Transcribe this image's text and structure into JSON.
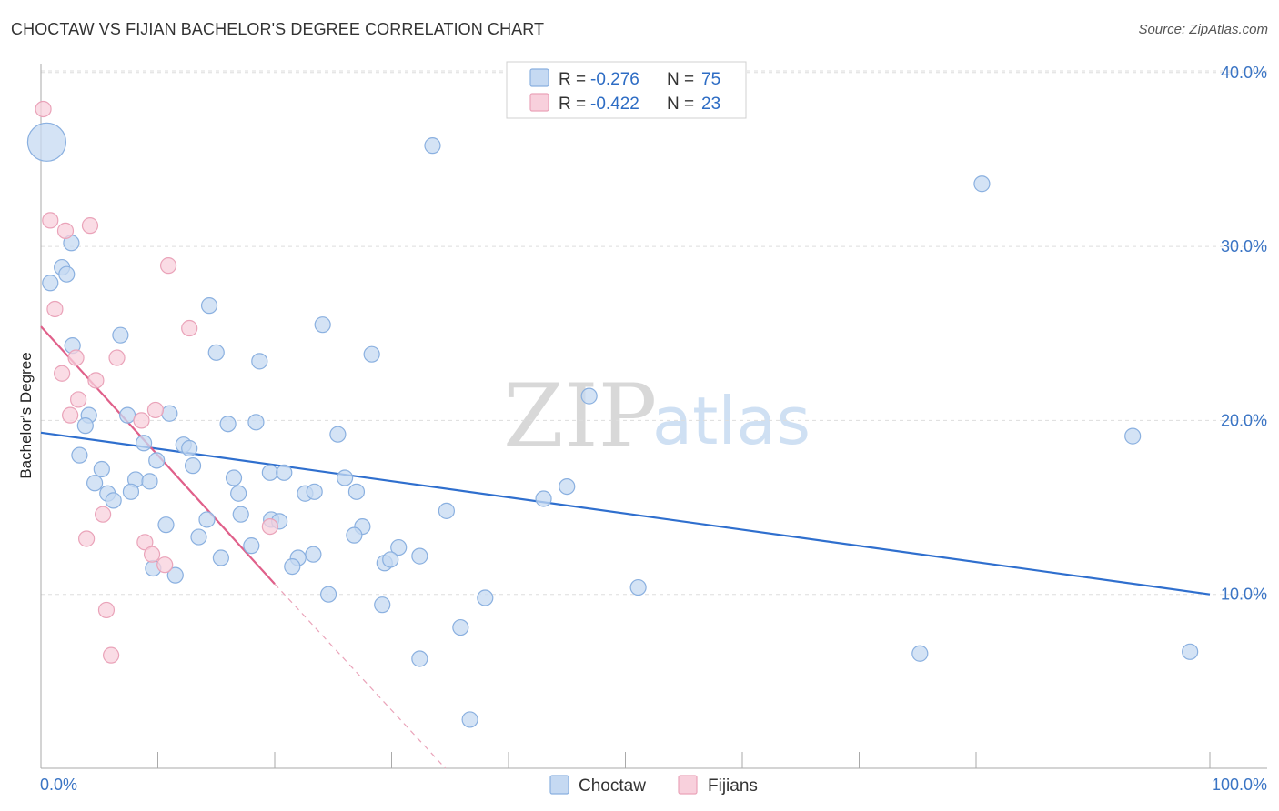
{
  "header": {
    "title": "CHOCTAW VS FIJIAN BACHELOR'S DEGREE CORRELATION CHART",
    "source": "Source: ZipAtlas.com"
  },
  "watermark": {
    "zip": "ZIP",
    "atlas": "atlas"
  },
  "legend": {
    "choctaw": {
      "r_label": "R =",
      "r_value": "-0.276",
      "n_label": "N =",
      "n_value": "75"
    },
    "fijians": {
      "r_label": "R =",
      "r_value": "-0.422",
      "n_label": "N =",
      "n_value": "23"
    }
  },
  "bottom_legend": {
    "choctaw": "Choctaw",
    "fijians": "Fijians"
  },
  "colors": {
    "choctaw_fill": "#c5d9f2",
    "choctaw_stroke": "#8ab0e0",
    "choctaw_line": "#2f6fce",
    "fijians_fill": "#f8d0dc",
    "fijians_stroke": "#eaa3b9",
    "fijians_line": "#e0608a"
  },
  "chart_data": {
    "type": "scatter",
    "title": "CHOCTAW VS FIJIAN BACHELOR'S DEGREE CORRELATION CHART",
    "xlabel": "",
    "ylabel": "Bachelor's Degree",
    "xlim": [
      0,
      100
    ],
    "ylim": [
      0,
      40.5
    ],
    "x_tick_labels": [
      "0.0%",
      "100.0%"
    ],
    "y_ticks": [
      10,
      20,
      30,
      40
    ],
    "y_tick_labels": [
      "10.0%",
      "20.0%",
      "30.0%",
      "40.0%"
    ],
    "grid": true,
    "series": [
      {
        "name": "Choctaw",
        "points": [
          [
            0.5,
            36.0,
            3
          ],
          [
            2.6,
            30.2,
            1
          ],
          [
            1.8,
            28.8,
            1
          ],
          [
            0.8,
            27.9,
            1
          ],
          [
            2.2,
            28.4,
            1
          ],
          [
            14.4,
            26.6,
            1
          ],
          [
            24.1,
            25.5,
            1
          ],
          [
            6.8,
            24.9,
            1
          ],
          [
            2.7,
            24.3,
            1
          ],
          [
            15.0,
            23.9,
            1
          ],
          [
            28.3,
            23.8,
            1
          ],
          [
            18.7,
            23.4,
            1
          ],
          [
            33.5,
            35.8,
            1
          ],
          [
            80.5,
            33.6,
            1
          ],
          [
            93.4,
            19.1,
            1
          ],
          [
            46.9,
            21.4,
            1
          ],
          [
            4.1,
            20.3,
            1
          ],
          [
            7.4,
            20.3,
            1
          ],
          [
            11.0,
            20.4,
            1
          ],
          [
            3.8,
            19.7,
            1
          ],
          [
            16.0,
            19.8,
            1
          ],
          [
            18.4,
            19.9,
            1
          ],
          [
            25.4,
            19.2,
            1
          ],
          [
            8.8,
            18.7,
            1
          ],
          [
            12.2,
            18.6,
            1
          ],
          [
            12.7,
            18.4,
            1
          ],
          [
            3.3,
            18.0,
            1
          ],
          [
            9.9,
            17.7,
            1
          ],
          [
            13.0,
            17.4,
            1
          ],
          [
            5.2,
            17.2,
            1
          ],
          [
            19.6,
            17.0,
            1
          ],
          [
            20.8,
            17.0,
            1
          ],
          [
            16.5,
            16.7,
            1
          ],
          [
            8.1,
            16.6,
            1
          ],
          [
            9.3,
            16.5,
            1
          ],
          [
            4.6,
            16.4,
            1
          ],
          [
            26.0,
            16.7,
            1
          ],
          [
            45.0,
            16.2,
            1
          ],
          [
            5.7,
            15.8,
            1
          ],
          [
            7.7,
            15.9,
            1
          ],
          [
            16.9,
            15.8,
            1
          ],
          [
            22.6,
            15.8,
            1
          ],
          [
            23.4,
            15.9,
            1
          ],
          [
            27.0,
            15.9,
            1
          ],
          [
            43.0,
            15.5,
            1
          ],
          [
            6.2,
            15.4,
            1
          ],
          [
            17.1,
            14.6,
            1
          ],
          [
            34.7,
            14.8,
            1
          ],
          [
            14.2,
            14.3,
            1
          ],
          [
            10.7,
            14.0,
            1
          ],
          [
            19.7,
            14.3,
            1
          ],
          [
            20.4,
            14.2,
            1
          ],
          [
            27.5,
            13.9,
            1
          ],
          [
            26.8,
            13.4,
            1
          ],
          [
            13.5,
            13.3,
            1
          ],
          [
            18.0,
            12.8,
            1
          ],
          [
            30.6,
            12.7,
            1
          ],
          [
            15.4,
            12.1,
            1
          ],
          [
            22.0,
            12.1,
            1
          ],
          [
            23.3,
            12.3,
            1
          ],
          [
            32.4,
            12.2,
            1
          ],
          [
            21.5,
            11.6,
            1
          ],
          [
            29.4,
            11.8,
            1
          ],
          [
            29.9,
            12.0,
            1
          ],
          [
            9.6,
            11.5,
            1
          ],
          [
            11.5,
            11.1,
            1
          ],
          [
            51.1,
            10.4,
            1
          ],
          [
            24.6,
            10.0,
            1
          ],
          [
            38.0,
            9.8,
            1
          ],
          [
            29.2,
            9.4,
            1
          ],
          [
            35.9,
            8.1,
            1
          ],
          [
            75.2,
            6.6,
            1
          ],
          [
            98.3,
            6.7,
            1
          ],
          [
            32.4,
            6.3,
            1
          ],
          [
            36.7,
            2.8,
            1
          ]
        ],
        "trend": {
          "x": [
            0,
            100
          ],
          "y": [
            19.3,
            10.0
          ]
        }
      },
      {
        "name": "Fijians",
        "points": [
          [
            0.2,
            37.9
          ],
          [
            0.8,
            31.5
          ],
          [
            2.1,
            30.9
          ],
          [
            4.2,
            31.2
          ],
          [
            10.9,
            28.9
          ],
          [
            1.2,
            26.4
          ],
          [
            12.7,
            25.3
          ],
          [
            3.0,
            23.6
          ],
          [
            6.5,
            23.6
          ],
          [
            1.8,
            22.7
          ],
          [
            4.7,
            22.3
          ],
          [
            3.2,
            21.2
          ],
          [
            9.8,
            20.6
          ],
          [
            2.5,
            20.3
          ],
          [
            8.6,
            20.0
          ],
          [
            5.3,
            14.6
          ],
          [
            19.6,
            13.9
          ],
          [
            3.9,
            13.2
          ],
          [
            8.9,
            13.0
          ],
          [
            9.5,
            12.3
          ],
          [
            10.6,
            11.7
          ],
          [
            5.6,
            9.1
          ],
          [
            6.0,
            6.5
          ]
        ],
        "trend": {
          "x": [
            0,
            20
          ],
          "y": [
            25.4,
            10.6
          ]
        },
        "trend_extension": {
          "x": [
            20,
            34.6
          ],
          "y": [
            10.6,
            0
          ]
        }
      }
    ]
  }
}
